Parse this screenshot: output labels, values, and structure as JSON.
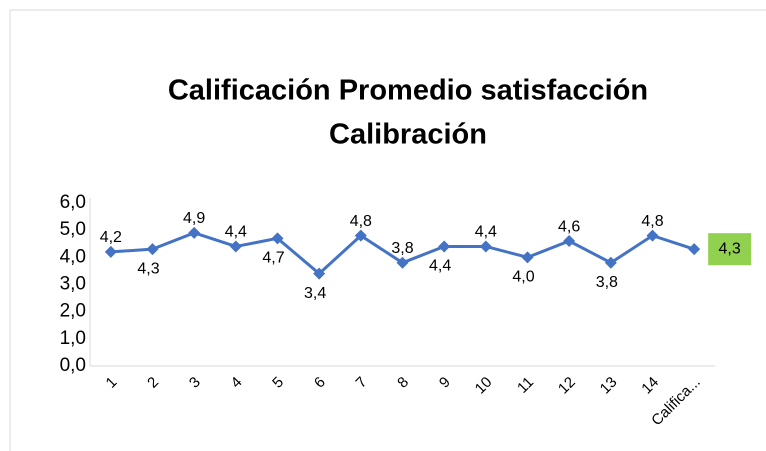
{
  "chart_data": {
    "type": "line",
    "title": [
      "Calificación Promedio satisfacción",
      "Calibración"
    ],
    "categories": [
      "1",
      "2",
      "3",
      "4",
      "5",
      "6",
      "7",
      "8",
      "9",
      "10",
      "11",
      "12",
      "13",
      "14",
      "Califica..."
    ],
    "series": [
      {
        "name": "Calificación Promedio satisfacción Calibración",
        "color": "#4472c4",
        "values": [
          4.2,
          4.3,
          4.9,
          4.4,
          4.7,
          3.4,
          4.8,
          3.8,
          4.4,
          4.4,
          4.0,
          4.6,
          3.8,
          4.8,
          4.3
        ],
        "value_labels": [
          "4,2",
          "4,3",
          "4,9",
          "4,4",
          "4,7",
          "3,4",
          "4,8",
          "3,8",
          "4,4",
          "4,4",
          "4,0",
          "4,6",
          "3,8",
          "4,8",
          "4,3"
        ]
      }
    ],
    "ylim": [
      0,
      6
    ],
    "yticks": [
      {
        "value": 0,
        "label": "0,0"
      },
      {
        "value": 1,
        "label": "1,0"
      },
      {
        "value": 2,
        "label": "2,0"
      },
      {
        "value": 3,
        "label": "3,0"
      },
      {
        "value": 4,
        "label": "4,0"
      },
      {
        "value": 5,
        "label": "5,0"
      },
      {
        "value": 6,
        "label": "6,0"
      }
    ],
    "highlight_color": "#92d050"
  }
}
